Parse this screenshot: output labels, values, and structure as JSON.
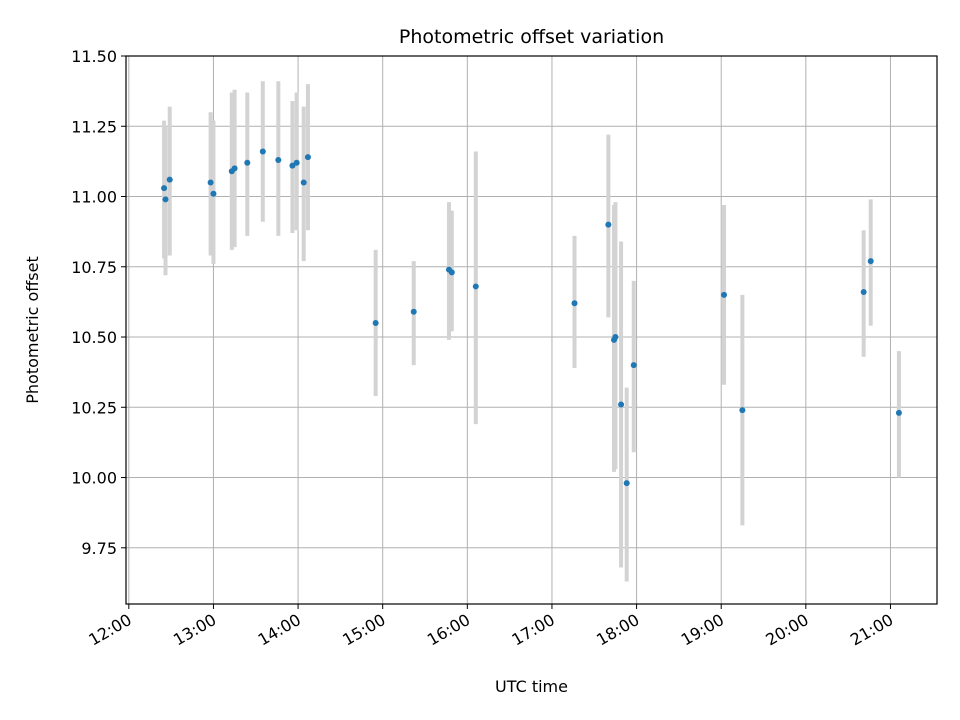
{
  "chart_data": {
    "type": "scatter",
    "title": "Photometric offset variation",
    "xlabel": "UTC time",
    "ylabel": "Photometric offset",
    "grid": true,
    "xlim": [
      "11:58",
      "21:33"
    ],
    "ylim": [
      9.55,
      11.5
    ],
    "x_ticks": [
      "12:00",
      "13:00",
      "14:00",
      "15:00",
      "16:00",
      "17:00",
      "18:00",
      "19:00",
      "20:00",
      "21:00"
    ],
    "y_ticks": [
      "9.75",
      "10.00",
      "10.25",
      "10.50",
      "10.75",
      "11.00",
      "11.25",
      "11.50"
    ],
    "colors": {
      "point": "#1f77b4",
      "errorbar": "#d3d3d3",
      "grid": "#b0b0b0"
    },
    "series": [
      {
        "points": [
          {
            "x": "12:25",
            "y": 11.03,
            "lo": 10.78,
            "hi": 11.27
          },
          {
            "x": "12:26",
            "y": 10.99,
            "lo": 10.72,
            "hi": 11.25
          },
          {
            "x": "12:29",
            "y": 11.06,
            "lo": 10.79,
            "hi": 11.32
          },
          {
            "x": "12:58",
            "y": 11.05,
            "lo": 10.79,
            "hi": 11.3
          },
          {
            "x": "13:00",
            "y": 11.01,
            "lo": 10.76,
            "hi": 11.27
          },
          {
            "x": "13:13",
            "y": 11.09,
            "lo": 10.81,
            "hi": 11.37
          },
          {
            "x": "13:15",
            "y": 11.1,
            "lo": 10.82,
            "hi": 11.38
          },
          {
            "x": "13:24",
            "y": 11.12,
            "lo": 10.86,
            "hi": 11.37
          },
          {
            "x": "13:35",
            "y": 11.16,
            "lo": 10.91,
            "hi": 11.41
          },
          {
            "x": "13:46",
            "y": 11.13,
            "lo": 10.86,
            "hi": 11.41
          },
          {
            "x": "13:56",
            "y": 11.11,
            "lo": 10.87,
            "hi": 11.34
          },
          {
            "x": "13:59",
            "y": 11.12,
            "lo": 10.88,
            "hi": 11.37
          },
          {
            "x": "14:04",
            "y": 11.05,
            "lo": 10.77,
            "hi": 11.32
          },
          {
            "x": "14:07",
            "y": 11.14,
            "lo": 10.88,
            "hi": 11.4
          },
          {
            "x": "14:55",
            "y": 10.55,
            "lo": 10.29,
            "hi": 10.81
          },
          {
            "x": "15:22",
            "y": 10.59,
            "lo": 10.4,
            "hi": 10.77
          },
          {
            "x": "15:47",
            "y": 10.74,
            "lo": 10.49,
            "hi": 10.98
          },
          {
            "x": "15:49",
            "y": 10.73,
            "lo": 10.52,
            "hi": 10.95
          },
          {
            "x": "16:06",
            "y": 10.68,
            "lo": 10.19,
            "hi": 11.16
          },
          {
            "x": "17:16",
            "y": 10.62,
            "lo": 10.39,
            "hi": 10.86
          },
          {
            "x": "17:40",
            "y": 10.9,
            "lo": 10.57,
            "hi": 11.22
          },
          {
            "x": "17:44",
            "y": 10.49,
            "lo": 10.02,
            "hi": 10.97
          },
          {
            "x": "17:45",
            "y": 10.5,
            "lo": 10.03,
            "hi": 10.98
          },
          {
            "x": "17:49",
            "y": 10.26,
            "lo": 9.68,
            "hi": 10.84
          },
          {
            "x": "17:53",
            "y": 9.98,
            "lo": 9.63,
            "hi": 10.32
          },
          {
            "x": "17:58",
            "y": 10.4,
            "lo": 10.09,
            "hi": 10.7
          },
          {
            "x": "19:02",
            "y": 10.65,
            "lo": 10.33,
            "hi": 10.97
          },
          {
            "x": "19:15",
            "y": 10.24,
            "lo": 9.83,
            "hi": 10.65
          },
          {
            "x": "20:41",
            "y": 10.66,
            "lo": 10.43,
            "hi": 10.88
          },
          {
            "x": "20:46",
            "y": 10.77,
            "lo": 10.54,
            "hi": 10.99
          },
          {
            "x": "21:06",
            "y": 10.23,
            "lo": 10.0,
            "hi": 10.45
          }
        ]
      }
    ]
  }
}
